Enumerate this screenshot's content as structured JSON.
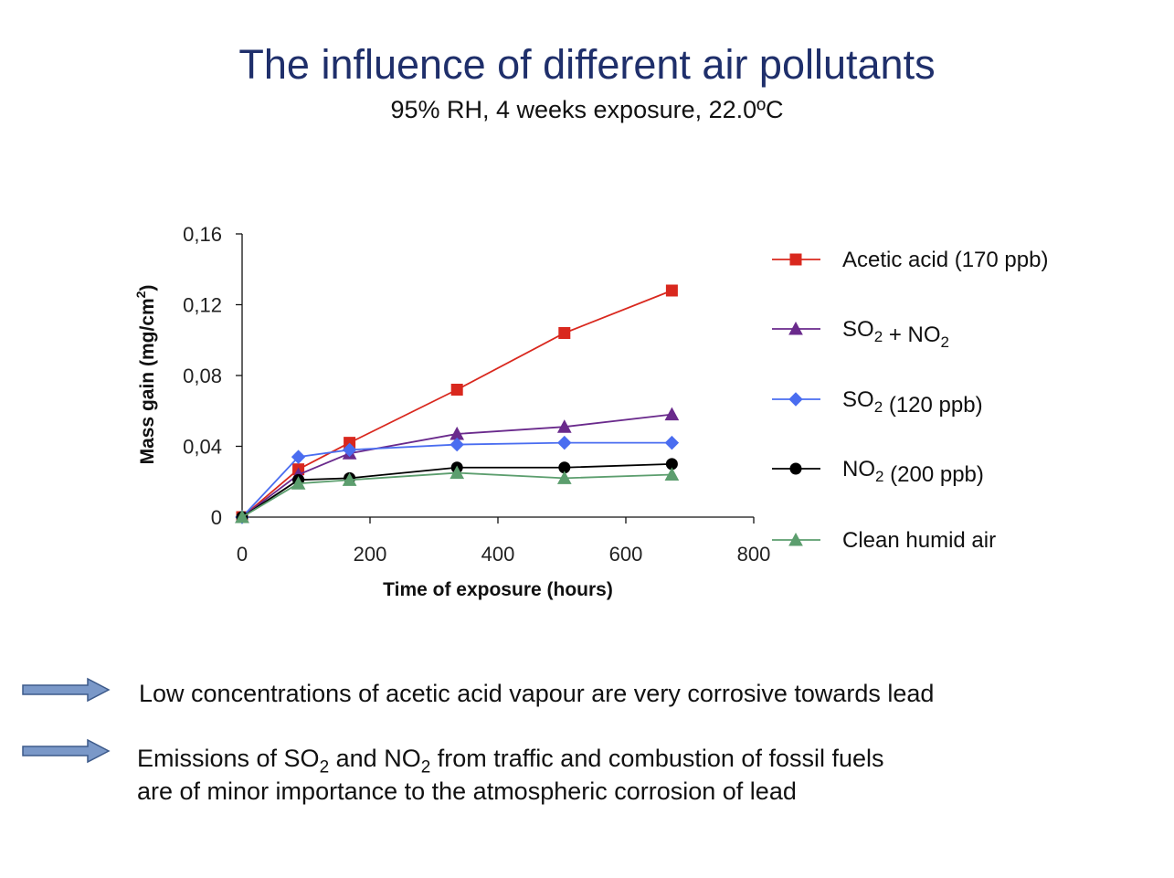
{
  "slide": {
    "title": "The influence of different air pollutants",
    "subtitle": "95% RH, 4 weeks exposure, 22.0ºC"
  },
  "chart_data": {
    "type": "line",
    "xlabel": "Time of exposure (hours)",
    "ylabel_main": "Mass gain (mg/cm",
    "ylabel_sup": "2",
    "ylabel_close": ")",
    "xlim": [
      0,
      800
    ],
    "ylim": [
      0,
      0.16
    ],
    "x_ticks": [
      0,
      200,
      400,
      600,
      800
    ],
    "x_tick_labels": [
      "0",
      "200",
      "400",
      "600",
      "800"
    ],
    "y_ticks": [
      0,
      0.04,
      0.08,
      0.12,
      0.16
    ],
    "y_tick_labels": [
      "0",
      "0,04",
      "0,08",
      "0,12",
      "0,16"
    ],
    "grid": false,
    "legend_position": "right",
    "series": [
      {
        "id": "acetic",
        "legend": {
          "main": "Acetic acid (170 ppb)"
        },
        "color": "#d9281e",
        "marker": "square",
        "x": [
          0,
          88,
          168,
          336,
          504,
          672
        ],
        "y": [
          0,
          0.027,
          0.042,
          0.072,
          0.104,
          0.128
        ]
      },
      {
        "id": "so2no2",
        "legend": {
          "pre": "SO",
          "sub": "2",
          "post": " + NO",
          "sub2": "2"
        },
        "color": "#6a2a8c",
        "marker": "triangle",
        "x": [
          0,
          88,
          168,
          336,
          504,
          672
        ],
        "y": [
          0,
          0.024,
          0.036,
          0.047,
          0.051,
          0.058
        ]
      },
      {
        "id": "so2",
        "legend": {
          "pre": "SO",
          "sub": "2",
          "post": " (120 ppb)"
        },
        "color": "#4a6df0",
        "marker": "diamond",
        "x": [
          0,
          88,
          168,
          336,
          504,
          672
        ],
        "y": [
          0,
          0.034,
          0.038,
          0.041,
          0.042,
          0.042
        ]
      },
      {
        "id": "no2",
        "legend": {
          "pre": "NO",
          "sub": "2",
          "post": " (200 ppb)"
        },
        "color": "#000000",
        "marker": "circle",
        "x": [
          0,
          88,
          168,
          336,
          504,
          672
        ],
        "y": [
          0,
          0.021,
          0.022,
          0.028,
          0.028,
          0.03
        ]
      },
      {
        "id": "clean",
        "legend": {
          "main": "Clean humid air"
        },
        "color": "#5c9e6e",
        "marker": "triangle",
        "x": [
          0,
          88,
          168,
          336,
          504,
          672
        ],
        "y": [
          0,
          0.019,
          0.021,
          0.025,
          0.022,
          0.024
        ]
      }
    ]
  },
  "bullets": [
    {
      "line1": "Low concentrations of acetic acid vapour are very corrosive towards lead"
    },
    {
      "p1": "Emissions of SO",
      "s1": "2",
      "p2": " and NO",
      "s2": "2",
      "p3": " from traffic and combustion of fossil fuels",
      "line2": "are of minor importance to the atmospheric corrosion of lead"
    }
  ],
  "colors": {
    "title": "#1f2f6b",
    "arrow_fill": "#7a98c8",
    "arrow_stroke": "#3d5a8a"
  }
}
